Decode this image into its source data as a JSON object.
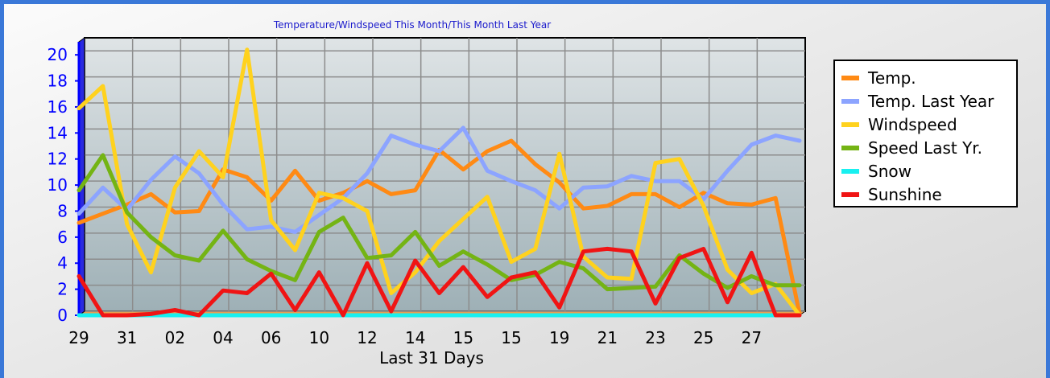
{
  "chart_data": {
    "type": "line",
    "title": "Temperature/Windspeed This Month/This Month Last Year",
    "xlabel": "Last 31 Days",
    "ylabel": "",
    "ylim": [
      0,
      21
    ],
    "yticks": [
      0,
      2,
      4,
      6,
      8,
      10,
      12,
      14,
      16,
      18,
      20
    ],
    "x_labels": [
      "29",
      "31",
      "02",
      "04",
      "06",
      "10",
      "12",
      "14",
      "15",
      "15",
      "19",
      "21",
      "23",
      "25",
      "27"
    ],
    "grid": true,
    "legend_position": "right",
    "series": [
      {
        "name": "Temp.",
        "color": "#ff8a14",
        "values": [
          7.1,
          7.8,
          8.5,
          9.3,
          7.9,
          8.0,
          11.2,
          10.6,
          8.8,
          11.1,
          8.8,
          9.4,
          10.3,
          9.3,
          9.6,
          12.7,
          11.2,
          12.6,
          13.4,
          11.6,
          10.2,
          8.2,
          8.4,
          9.3,
          9.3,
          8.3,
          9.4,
          8.6,
          8.5,
          9.0,
          0.1
        ]
      },
      {
        "name": "Temp. Last Year",
        "color": "#8ca4ff",
        "values": [
          7.8,
          9.8,
          8.1,
          10.4,
          12.2,
          10.9,
          8.5,
          6.6,
          6.8,
          6.4,
          7.7,
          9.0,
          10.9,
          13.8,
          13.1,
          12.6,
          14.4,
          11.1,
          10.3,
          9.6,
          8.2,
          9.8,
          9.9,
          10.7,
          10.3,
          10.3,
          8.9,
          11.1,
          13.1,
          13.8,
          13.4
        ]
      },
      {
        "name": "Windspeed",
        "color": "#ffd21e",
        "values": [
          15.9,
          17.6,
          7.0,
          3.3,
          9.8,
          12.6,
          10.6,
          20.4,
          7.3,
          5.0,
          9.4,
          9.0,
          8.0,
          1.7,
          3.3,
          5.7,
          7.4,
          9.1,
          4.1,
          5.1,
          12.4,
          4.5,
          2.9,
          2.8,
          11.7,
          12.0,
          8.4,
          3.5,
          1.7,
          2.4,
          0.0
        ]
      },
      {
        "name": "Speed Last Yr.",
        "color": "#74b414",
        "values": [
          9.6,
          12.3,
          7.9,
          6.0,
          4.6,
          4.2,
          6.5,
          4.3,
          3.4,
          2.7,
          6.4,
          7.5,
          4.4,
          4.6,
          6.4,
          3.8,
          4.9,
          3.9,
          2.7,
          3.1,
          4.1,
          3.6,
          2.0,
          2.1,
          2.2,
          4.6,
          3.2,
          2.1,
          3.0,
          2.3,
          2.3
        ]
      },
      {
        "name": "Snow",
        "color": "#18f0f0",
        "values": [
          0,
          0,
          0,
          0,
          0,
          0,
          0,
          0,
          0,
          0,
          0,
          0,
          0,
          0,
          0,
          0,
          0,
          0,
          0,
          0,
          0,
          0,
          0,
          0,
          0,
          0,
          0,
          0,
          0,
          0,
          0
        ]
      },
      {
        "name": "Sunshine",
        "color": "#f01414",
        "values": [
          3.0,
          0.0,
          0.0,
          0.1,
          0.4,
          0.0,
          1.9,
          1.7,
          3.2,
          0.4,
          3.3,
          0.0,
          4.0,
          0.3,
          4.2,
          1.7,
          3.7,
          1.4,
          2.9,
          3.3,
          0.6,
          4.9,
          5.1,
          4.9,
          0.9,
          4.4,
          5.1,
          1.0,
          4.8,
          0.0,
          0.0
        ]
      }
    ]
  }
}
